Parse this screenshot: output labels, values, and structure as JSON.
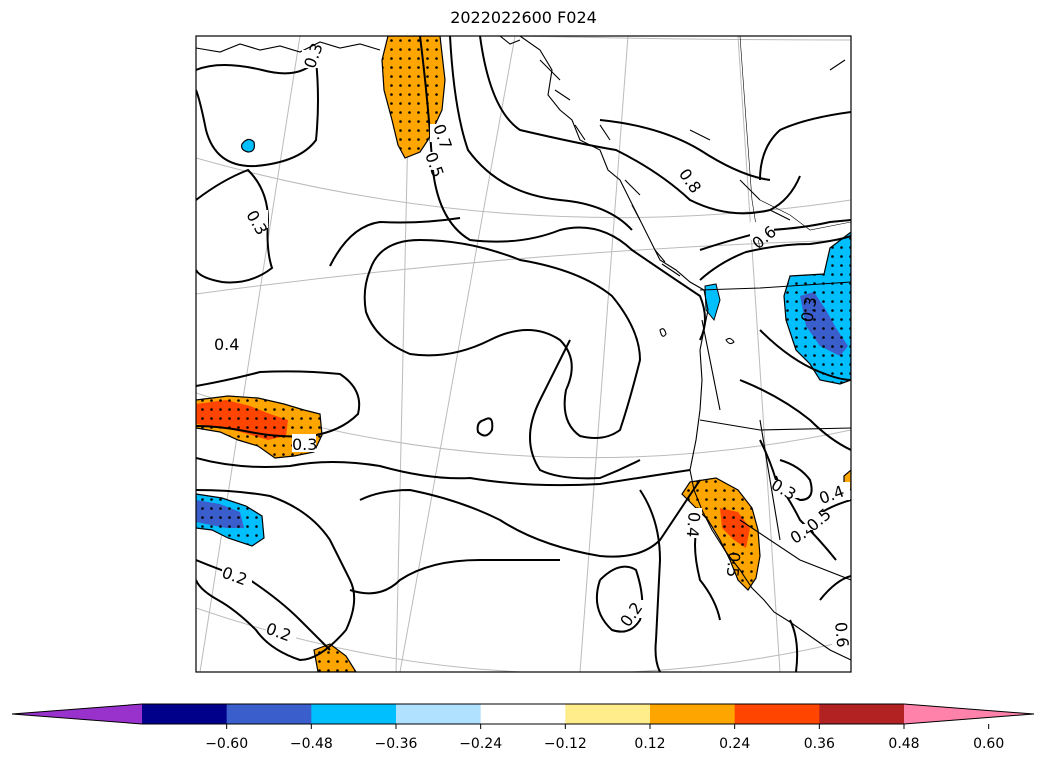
{
  "title": "2022022600 F024",
  "map": {
    "graticule_color": "#bbbbbb",
    "coastline_color": "#000000",
    "contour_color": "#000000",
    "stipple_color": "#000000",
    "contour_labels": [
      "0.3",
      "0.3",
      "0.7",
      "0.5",
      "0.8",
      "0.6",
      "0.4",
      "0.3",
      "0.3",
      "0.4",
      "0.2",
      "0.2",
      "0.4",
      "0.5",
      "0.3",
      "0.4",
      "0.5",
      "0.2",
      "0.6"
    ]
  },
  "colorbar": {
    "colors": [
      "#9932cc",
      "#00008b",
      "#3a5fcd",
      "#00bfff",
      "#b0e2ff",
      "#ffffff",
      "#ffec8b",
      "#ffa500",
      "#ff4500",
      "#b22222",
      "#ff82ab"
    ],
    "tick_labels": [
      "−0.60",
      "−0.48",
      "−0.36",
      "−0.24",
      "−0.12",
      "0.12",
      "0.24",
      "0.36",
      "0.48",
      "0.60"
    ]
  }
}
